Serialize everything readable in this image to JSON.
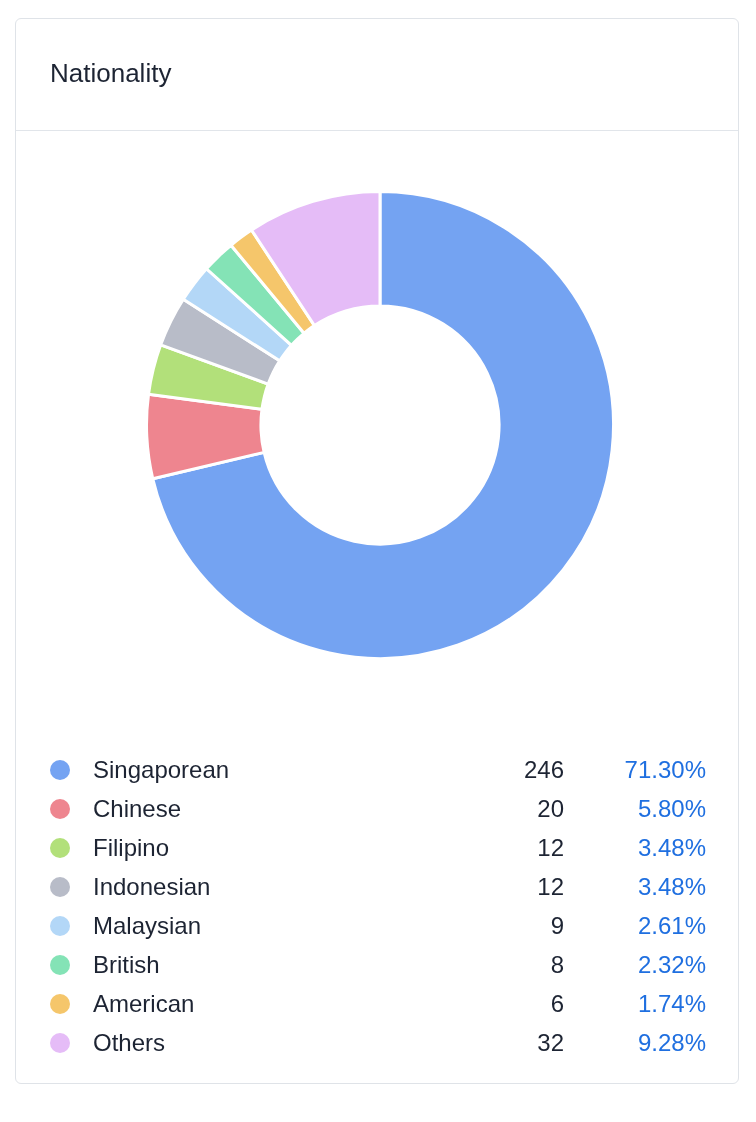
{
  "chart_data": {
    "type": "donut",
    "title": "Nationality",
    "categories": [
      "Singaporean",
      "Chinese",
      "Filipino",
      "Indonesian",
      "Malaysian",
      "British",
      "American",
      "Others"
    ],
    "values": [
      246,
      20,
      12,
      12,
      9,
      8,
      6,
      32
    ],
    "colors": [
      "#74a3f2",
      "#ee858f",
      "#b2e07a",
      "#b8bcc8",
      "#b3d7f7",
      "#84e3b6",
      "#f5c66b",
      "#e5bcf7"
    ],
    "annotations": [
      "71.30%",
      "5.80%",
      "3.48%",
      "3.48%",
      "2.61%",
      "2.32%",
      "1.74%",
      "9.28%"
    ],
    "data_labels": true,
    "legend": "bottom"
  }
}
